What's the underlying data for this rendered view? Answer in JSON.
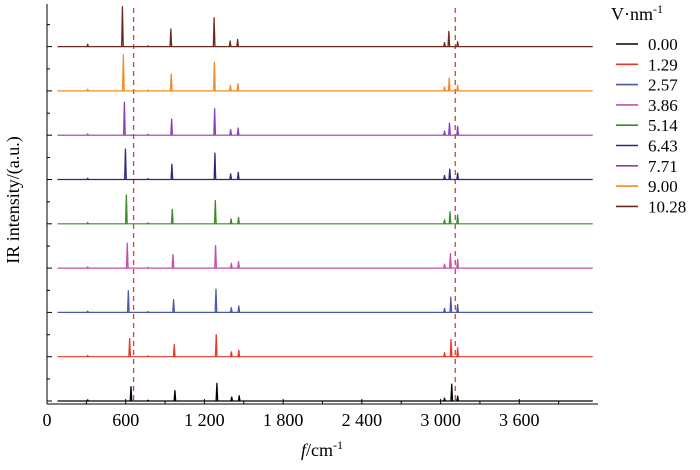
{
  "chart_data": {
    "type": "line",
    "xlabel_italic": "f",
    "xlabel_rest": "/cm",
    "xlabel_sup": "-1",
    "ylabel": "IR intensity/(a.u.)",
    "x_range": [
      0,
      4200
    ],
    "x_ticks": [
      0,
      600,
      1200,
      1800,
      2400,
      3000,
      3600
    ],
    "x_tick_labels": [
      "0",
      "600",
      "1 200",
      "1 800",
      "2 400",
      "3 000",
      "3 600"
    ],
    "reference_lines_x": [
      660,
      3112
    ],
    "legend_title_main": "V·nm",
    "legend_title_sup": "-1",
    "colors": [
      "#000000",
      "#e8392a",
      "#4b59a6",
      "#c64ea9",
      "#3c8a2b",
      "#2b2a7a",
      "#8b3fb6",
      "#f08c24",
      "#6b2a1e"
    ],
    "series": [
      {
        "name": "0.00",
        "peaks": [
          [
            310,
            0.03
          ],
          [
            640,
            0.36
          ],
          [
            770,
            0.02
          ],
          [
            975,
            0.26
          ],
          [
            1295,
            0.44
          ],
          [
            1408,
            0.1
          ],
          [
            1465,
            0.13
          ],
          [
            3030,
            0.07
          ],
          [
            3085,
            0.42
          ],
          [
            3130,
            0.12
          ]
        ]
      },
      {
        "name": "1.29",
        "peaks": [
          [
            310,
            0.03
          ],
          [
            630,
            0.45
          ],
          [
            770,
            0.02
          ],
          [
            970,
            0.3
          ],
          [
            1290,
            0.55
          ],
          [
            1405,
            0.12
          ],
          [
            1462,
            0.16
          ],
          [
            3030,
            0.1
          ],
          [
            3080,
            0.43
          ],
          [
            3130,
            0.22
          ]
        ]
      },
      {
        "name": "2.57",
        "peaks": [
          [
            310,
            0.03
          ],
          [
            620,
            0.54
          ],
          [
            770,
            0.02
          ],
          [
            965,
            0.32
          ],
          [
            1288,
            0.58
          ],
          [
            1405,
            0.12
          ],
          [
            1462,
            0.16
          ],
          [
            3030,
            0.1
          ],
          [
            3078,
            0.38
          ],
          [
            3130,
            0.2
          ]
        ]
      },
      {
        "name": "3.86",
        "peaks": [
          [
            310,
            0.03
          ],
          [
            612,
            0.62
          ],
          [
            770,
            0.02
          ],
          [
            960,
            0.34
          ],
          [
            1285,
            0.56
          ],
          [
            1405,
            0.12
          ],
          [
            1460,
            0.16
          ],
          [
            3030,
            0.1
          ],
          [
            3075,
            0.36
          ],
          [
            3130,
            0.22
          ]
        ]
      },
      {
        "name": "5.14",
        "peaks": [
          [
            310,
            0.03
          ],
          [
            605,
            0.72
          ],
          [
            770,
            0.02
          ],
          [
            955,
            0.36
          ],
          [
            1283,
            0.58
          ],
          [
            1403,
            0.12
          ],
          [
            1460,
            0.16
          ],
          [
            3030,
            0.1
          ],
          [
            3072,
            0.3
          ],
          [
            3130,
            0.22
          ]
        ]
      },
      {
        "name": "6.43",
        "peaks": [
          [
            310,
            0.03
          ],
          [
            598,
            0.76
          ],
          [
            770,
            0.02
          ],
          [
            952,
            0.38
          ],
          [
            1280,
            0.66
          ],
          [
            1400,
            0.14
          ],
          [
            1458,
            0.18
          ],
          [
            3030,
            0.1
          ],
          [
            3070,
            0.26
          ],
          [
            3130,
            0.16
          ]
        ]
      },
      {
        "name": "7.71",
        "peaks": [
          [
            310,
            0.03
          ],
          [
            590,
            0.82
          ],
          [
            770,
            0.02
          ],
          [
            950,
            0.4
          ],
          [
            1278,
            0.66
          ],
          [
            1400,
            0.14
          ],
          [
            1457,
            0.18
          ],
          [
            3030,
            0.1
          ],
          [
            3068,
            0.3
          ],
          [
            3130,
            0.22
          ]
        ]
      },
      {
        "name": "9.00",
        "peaks": [
          [
            310,
            0.04
          ],
          [
            582,
            0.9
          ],
          [
            770,
            0.02
          ],
          [
            947,
            0.42
          ],
          [
            1276,
            0.72
          ],
          [
            1398,
            0.14
          ],
          [
            1455,
            0.18
          ],
          [
            3030,
            0.1
          ],
          [
            3066,
            0.32
          ],
          [
            3130,
            0.14
          ]
        ]
      },
      {
        "name": "10.28",
        "peaks": [
          [
            310,
            0.06
          ],
          [
            575,
            1.0
          ],
          [
            770,
            0.02
          ],
          [
            944,
            0.44
          ],
          [
            1274,
            0.72
          ],
          [
            1396,
            0.14
          ],
          [
            1453,
            0.18
          ],
          [
            3030,
            0.1
          ],
          [
            3063,
            0.38
          ],
          [
            3130,
            0.12
          ]
        ]
      }
    ]
  }
}
